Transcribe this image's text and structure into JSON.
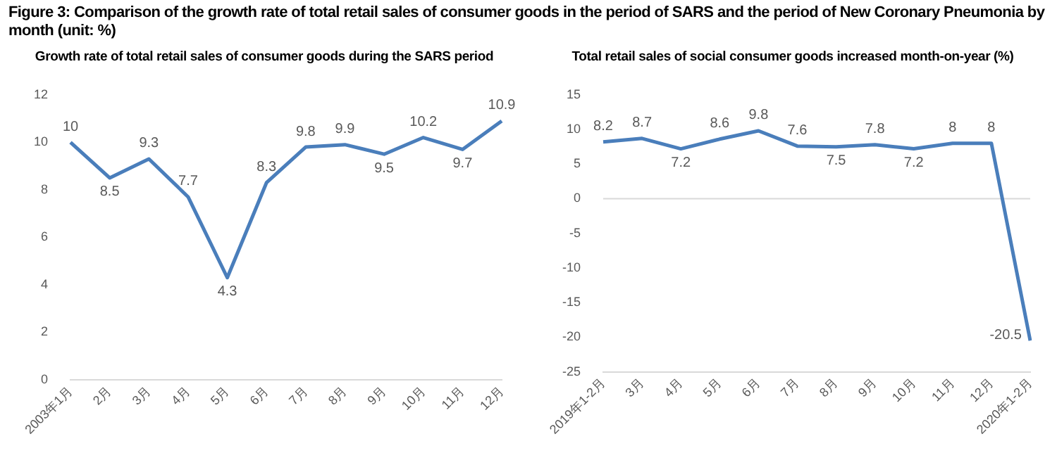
{
  "chart_data": [
    {
      "type": "line",
      "title": "Growth rate of total retail sales of consumer goods during the SARS period",
      "annotations": [
        "Figure 3: Comparison of the growth rate of total retail sales of consumer goods in the period of SARS and the period of New Coronary Pneumonia by month  (unit:  %)"
      ],
      "categories": [
        "2003年1月",
        "2月",
        "3月",
        "4月",
        "5月",
        "6月",
        "7月",
        "8月",
        "9月",
        "10月",
        "11月",
        "12月"
      ],
      "series": [
        {
          "color": "#4a7ebb",
          "values": [
            10,
            8.5,
            9.3,
            7.7,
            4.3,
            8.3,
            9.8,
            9.9,
            9.5,
            10.2,
            9.7,
            10.9
          ]
        }
      ],
      "ylim": [
        0,
        12
      ],
      "yticks": [
        0,
        2,
        4,
        6,
        8,
        10,
        12
      ],
      "grid": false,
      "legend": false,
      "data_labels": true,
      "marker": "none"
    },
    {
      "type": "line",
      "title": "Total retail sales of social consumer goods increased month-on-year (%)",
      "categories": [
        "2019年1-2月",
        "3月",
        "4月",
        "5月",
        "6月",
        "7月",
        "8月",
        "9月",
        "10月",
        "11月",
        "12月",
        "2020年1-2月"
      ],
      "series": [
        {
          "color": "#4a7ebb",
          "values": [
            8.2,
            8.7,
            7.2,
            8.6,
            9.8,
            7.6,
            7.5,
            7.8,
            7.2,
            8,
            8,
            -20.5
          ]
        }
      ],
      "ylim": [
        -25,
        15
      ],
      "yticks": [
        -25,
        -20,
        -15,
        -10,
        -5,
        0,
        5,
        10,
        15
      ],
      "grid": false,
      "legend": false,
      "data_labels": true,
      "marker": "none",
      "ref_lines": [
        {
          "axis": "y",
          "value": 0,
          "color": "#d9d9d9"
        }
      ]
    }
  ]
}
